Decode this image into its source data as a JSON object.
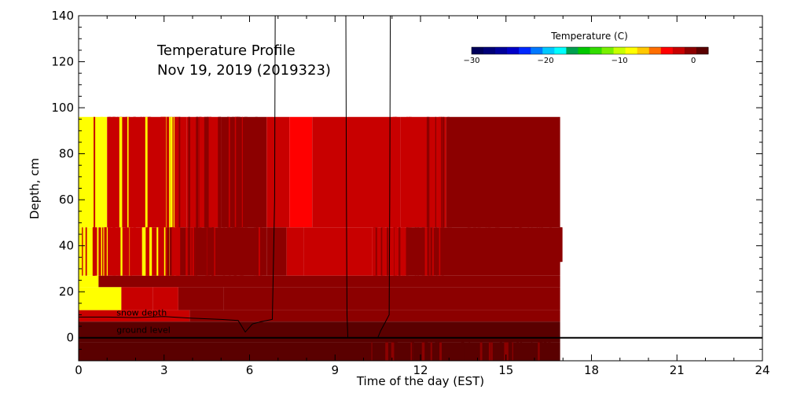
{
  "chart_data": {
    "type": "heatmap",
    "title_line1": "Temperature Profile",
    "title_line2": "Nov 19, 2019 (2019323)",
    "xlabel": "Time of the day (EST)",
    "ylabel": "Depth, cm",
    "xlim": [
      0,
      24
    ],
    "ylim": [
      -10,
      140
    ],
    "x_ticks": [
      0,
      3,
      6,
      9,
      12,
      15,
      18,
      21,
      24
    ],
    "y_ticks": [
      0,
      20,
      40,
      60,
      80,
      100,
      120,
      140
    ],
    "colorbar": {
      "title": "Temperature (C)",
      "min": -30,
      "max": 2,
      "tick_values": [
        -30,
        -20,
        -10,
        0
      ],
      "tick_labels": [
        "−30",
        "−20",
        "−10",
        "0"
      ],
      "colors": [
        "#00005a",
        "#000078",
        "#00009b",
        "#0000c8",
        "#0028ff",
        "#0078ff",
        "#00c8ff",
        "#00ffff",
        "#00a050",
        "#00c800",
        "#32dc00",
        "#78f000",
        "#c8ff00",
        "#ffff00",
        "#ffc800",
        "#ff6e00",
        "#ff0000",
        "#c80000",
        "#8c0000",
        "#5a0000"
      ]
    },
    "heat_blocks": [
      {
        "x0": 0,
        "x1": 1.0,
        "y0": 48,
        "y1": 96,
        "temp": -8
      },
      {
        "x0": 1.0,
        "x1": 3.8,
        "y0": 48,
        "y1": 96,
        "temp": -2.5
      },
      {
        "x0": 3.8,
        "x1": 5.0,
        "y0": 48,
        "y1": 96,
        "temp": -2
      },
      {
        "x0": 5.0,
        "x1": 6.6,
        "y0": 48,
        "y1": 96,
        "temp": -1.0
      },
      {
        "x0": 6.6,
        "x1": 7.4,
        "y0": 48,
        "y1": 96,
        "temp": -2
      },
      {
        "x0": 7.4,
        "x1": 8.2,
        "y0": 48,
        "y1": 96,
        "temp": -3
      },
      {
        "x0": 8.2,
        "x1": 11.3,
        "y0": 48,
        "y1": 96,
        "temp": -2.5
      },
      {
        "x0": 11.3,
        "x1": 12.9,
        "y0": 48,
        "y1": 96,
        "temp": -2
      },
      {
        "x0": 12.9,
        "x1": 16.9,
        "y0": 48,
        "y1": 96,
        "temp": -1.0
      },
      {
        "x0": 0,
        "x1": 0.7,
        "y0": 27,
        "y1": 48,
        "temp": -8
      },
      {
        "x0": 0.7,
        "x1": 3.5,
        "y0": 27,
        "y1": 48,
        "temp": -2.5
      },
      {
        "x0": 3.5,
        "x1": 6.6,
        "y0": 27,
        "y1": 48,
        "temp": -0.2
      },
      {
        "x0": 6.6,
        "x1": 7.3,
        "y0": 27,
        "y1": 48,
        "temp": -1.0
      },
      {
        "x0": 7.3,
        "x1": 7.9,
        "y0": 27,
        "y1": 48,
        "temp": -2
      },
      {
        "x0": 7.9,
        "x1": 10.3,
        "y0": 27,
        "y1": 48,
        "temp": -2.5
      },
      {
        "x0": 10.3,
        "x1": 11.5,
        "y0": 27,
        "y1": 48,
        "temp": -2
      },
      {
        "x0": 11.5,
        "x1": 16.9,
        "y0": 27,
        "y1": 48,
        "temp": -0.2
      },
      {
        "x0": 0,
        "x1": 0.7,
        "y0": 22,
        "y1": 27,
        "temp": -8
      },
      {
        "x0": 0.7,
        "x1": 16.9,
        "y0": 22,
        "y1": 27,
        "temp": -0.2
      },
      {
        "x0": 0,
        "x1": 1.5,
        "y0": 12,
        "y1": 22,
        "temp": -8
      },
      {
        "x0": 1.5,
        "x1": 2.6,
        "y0": 12,
        "y1": 22,
        "temp": -2.5
      },
      {
        "x0": 2.6,
        "x1": 3.5,
        "y0": 12,
        "y1": 22,
        "temp": -2
      },
      {
        "x0": 3.5,
        "x1": 5.1,
        "y0": 12,
        "y1": 22,
        "temp": -1.0
      },
      {
        "x0": 5.1,
        "x1": 16.9,
        "y0": 12,
        "y1": 22,
        "temp": -0.2
      },
      {
        "x0": 0,
        "x1": 3.9,
        "y0": 7,
        "y1": 12,
        "temp": -2
      },
      {
        "x0": 3.9,
        "x1": 16.9,
        "y0": 7,
        "y1": 12,
        "temp": -0.2
      },
      {
        "x0": 0,
        "x1": 16.9,
        "y0": -2,
        "y1": 7,
        "temp": 1.5
      },
      {
        "x0": 0,
        "x1": 16.9,
        "y0": -10,
        "y1": -2,
        "temp": 0.5
      }
    ],
    "streak_groups": [
      {
        "x0": 0.5,
        "x1": 3.5,
        "y0": 48,
        "y1": 96,
        "count": 40,
        "temps": [
          -8,
          -2.5,
          -2
        ]
      },
      {
        "x0": 3.5,
        "x1": 6.4,
        "y0": 48,
        "y1": 96,
        "count": 30,
        "temps": [
          -2,
          -1.0,
          -0.2
        ]
      },
      {
        "x0": 10.8,
        "x1": 11.6,
        "y0": 48,
        "y1": 96,
        "count": 6,
        "temps": [
          -2.5,
          -2
        ]
      },
      {
        "x0": 11.9,
        "x1": 13.0,
        "y0": 48,
        "y1": 96,
        "count": 6,
        "temps": [
          -2,
          -1.0
        ]
      },
      {
        "x0": 0.1,
        "x1": 3.5,
        "y0": 27,
        "y1": 48,
        "count": 35,
        "temps": [
          -8,
          -2.5,
          -2
        ]
      },
      {
        "x0": 3.0,
        "x1": 6.5,
        "y0": 27,
        "y1": 48,
        "count": 30,
        "temps": [
          -2,
          -1.0,
          -0.2
        ]
      },
      {
        "x0": 10.3,
        "x1": 12.8,
        "y0": 27,
        "y1": 48,
        "count": 30,
        "temps": [
          -2,
          -1.0,
          -0.2
        ]
      },
      {
        "x0": 13.0,
        "x1": 16.9,
        "y0": 33,
        "y1": 48,
        "count": 20,
        "temps": [
          -1.0,
          -0.2
        ]
      },
      {
        "x0": 10.2,
        "x1": 16.9,
        "y0": -10,
        "y1": -2,
        "count": 40,
        "temps": [
          -0.2,
          0.5
        ]
      }
    ],
    "snow_depth_line": [
      [
        0,
        9
      ],
      [
        1,
        9
      ],
      [
        2,
        8.8
      ],
      [
        3,
        9.2
      ],
      [
        4,
        8.5
      ],
      [
        5,
        8
      ],
      [
        5.6,
        7.5
      ],
      [
        5.85,
        2.5
      ],
      [
        6.1,
        6
      ],
      [
        6.4,
        7
      ],
      [
        6.8,
        8
      ],
      [
        6.88,
        60
      ],
      [
        6.9,
        140
      ]
    ],
    "vertical_lines": [
      [
        [
          9.38,
          140
        ],
        [
          9.4,
          60
        ],
        [
          9.42,
          10
        ],
        [
          9.45,
          0
        ]
      ],
      [
        [
          10.5,
          0
        ],
        [
          10.6,
          3
        ],
        [
          10.9,
          10
        ],
        [
          10.92,
          60
        ],
        [
          10.94,
          140
        ]
      ]
    ],
    "ground_level_y": 0,
    "annotations": [
      {
        "text": "snow depth",
        "x": 1.0,
        "y": 9.0
      },
      {
        "text": "ground level",
        "x": 1.0,
        "y": 1.5
      }
    ]
  }
}
